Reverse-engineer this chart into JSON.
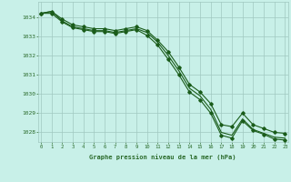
{
  "x": [
    0,
    1,
    2,
    3,
    4,
    5,
    6,
    7,
    8,
    9,
    10,
    11,
    12,
    13,
    14,
    15,
    16,
    17,
    18,
    19,
    20,
    21,
    22,
    23
  ],
  "series1": [
    1034.2,
    1034.3,
    1033.9,
    1033.6,
    1033.5,
    1033.4,
    1033.4,
    1033.3,
    1033.4,
    1033.5,
    1033.3,
    1032.8,
    1032.2,
    1031.4,
    1030.5,
    1030.1,
    1029.5,
    1028.4,
    1028.3,
    1029.0,
    1028.4,
    1028.2,
    1028.0,
    1027.95
  ],
  "series2": [
    1034.2,
    1034.3,
    1033.8,
    1033.5,
    1033.4,
    1033.3,
    1033.3,
    1033.2,
    1033.3,
    1033.4,
    1033.2,
    1032.7,
    1032.0,
    1031.2,
    1030.3,
    1029.9,
    1029.2,
    1028.0,
    1027.85,
    1028.7,
    1028.15,
    1027.95,
    1027.75,
    1027.7
  ],
  "series3": [
    1034.2,
    1034.2,
    1033.75,
    1033.45,
    1033.35,
    1033.25,
    1033.25,
    1033.15,
    1033.25,
    1033.35,
    1033.05,
    1032.55,
    1031.8,
    1031.0,
    1030.1,
    1029.7,
    1029.0,
    1027.85,
    1027.7,
    1028.6,
    1028.1,
    1027.9,
    1027.65,
    1027.6
  ],
  "line_color": "#1a5c1a",
  "dot_color": "#1a5c1a",
  "bg_color": "#c8f0e8",
  "grid_color": "#a0c8c0",
  "axis_color": "#2a6a2a",
  "xlabel": "Graphe pression niveau de la mer (hPa)",
  "ylim": [
    1027.5,
    1034.8
  ],
  "yticks": [
    1028,
    1029,
    1030,
    1031,
    1032,
    1033,
    1034
  ],
  "xticks": [
    0,
    1,
    2,
    3,
    4,
    5,
    6,
    7,
    8,
    9,
    10,
    11,
    12,
    13,
    14,
    15,
    16,
    17,
    18,
    19,
    20,
    21,
    22,
    23
  ]
}
